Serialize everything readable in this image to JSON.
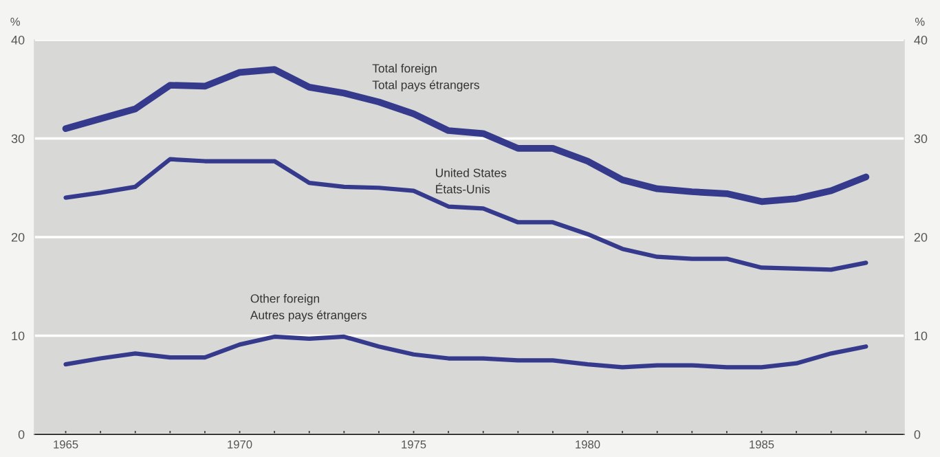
{
  "chart_data": {
    "type": "line",
    "ylabel": "%",
    "y2label": "%",
    "x": [
      1965,
      1966,
      1967,
      1968,
      1969,
      1970,
      1971,
      1972,
      1973,
      1974,
      1975,
      1976,
      1977,
      1978,
      1979,
      1980,
      1981,
      1982,
      1983,
      1984,
      1985,
      1986,
      1987,
      1988
    ],
    "series": [
      {
        "name": "Total foreign\nTotal pays étrangers",
        "color": "#353a8c",
        "values": [
          31.0,
          32.0,
          33.0,
          35.4,
          35.3,
          36.7,
          37.0,
          35.2,
          34.6,
          33.7,
          32.5,
          30.8,
          30.5,
          29.0,
          29.0,
          27.7,
          25.8,
          24.9,
          24.6,
          24.4,
          23.6,
          23.9,
          24.7,
          26.1
        ]
      },
      {
        "name": "United States\nÉtats-Unis",
        "color": "#353a8c",
        "values": [
          24.0,
          24.5,
          25.1,
          27.9,
          27.7,
          27.7,
          27.7,
          25.5,
          25.1,
          25.0,
          24.7,
          23.1,
          22.9,
          21.5,
          21.5,
          20.3,
          18.8,
          18.0,
          17.8,
          17.8,
          16.9,
          16.8,
          16.7,
          17.4
        ]
      },
      {
        "name": "Other foreign\nAutres pays étrangers",
        "color": "#353a8c",
        "values": [
          7.1,
          7.7,
          8.2,
          7.8,
          7.8,
          9.1,
          9.9,
          9.7,
          9.9,
          8.9,
          8.1,
          7.7,
          7.7,
          7.5,
          7.5,
          7.1,
          6.8,
          7.0,
          7.0,
          6.8,
          6.8,
          7.2,
          8.2,
          8.9
        ]
      }
    ],
    "xlim": [
      1964.1,
      1989.1
    ],
    "xticks": [
      1965,
      {
        "value": 1966,
        "label": null
      },
      {
        "value": 1967,
        "label": null
      },
      {
        "value": 1968,
        "label": null
      },
      {
        "value": 1969,
        "label": null
      },
      1970,
      {
        "value": 1971,
        "label": null
      },
      {
        "value": 1972,
        "label": null
      },
      {
        "value": 1973,
        "label": null
      },
      {
        "value": 1974,
        "label": null
      },
      1975,
      {
        "value": 1976,
        "label": null
      },
      {
        "value": 1977,
        "label": null
      },
      {
        "value": 1978,
        "label": null
      },
      {
        "value": 1979,
        "label": null
      },
      1980,
      {
        "value": 1981,
        "label": null
      },
      {
        "value": 1982,
        "label": null
      },
      {
        "value": 1983,
        "label": null
      },
      {
        "value": 1984,
        "label": null
      },
      1985,
      {
        "value": 1986,
        "label": null
      },
      {
        "value": 1987,
        "label": null
      },
      {
        "value": 1988,
        "label": null
      }
    ],
    "ylim": [
      0,
      40
    ],
    "yticks": [
      0,
      10,
      20,
      30,
      40
    ],
    "y2lim": [
      0,
      40
    ],
    "y2ticks": [
      0,
      10,
      20,
      30,
      40
    ],
    "grid": "y",
    "legend": false,
    "marker": "none",
    "line_style": "solid"
  }
}
